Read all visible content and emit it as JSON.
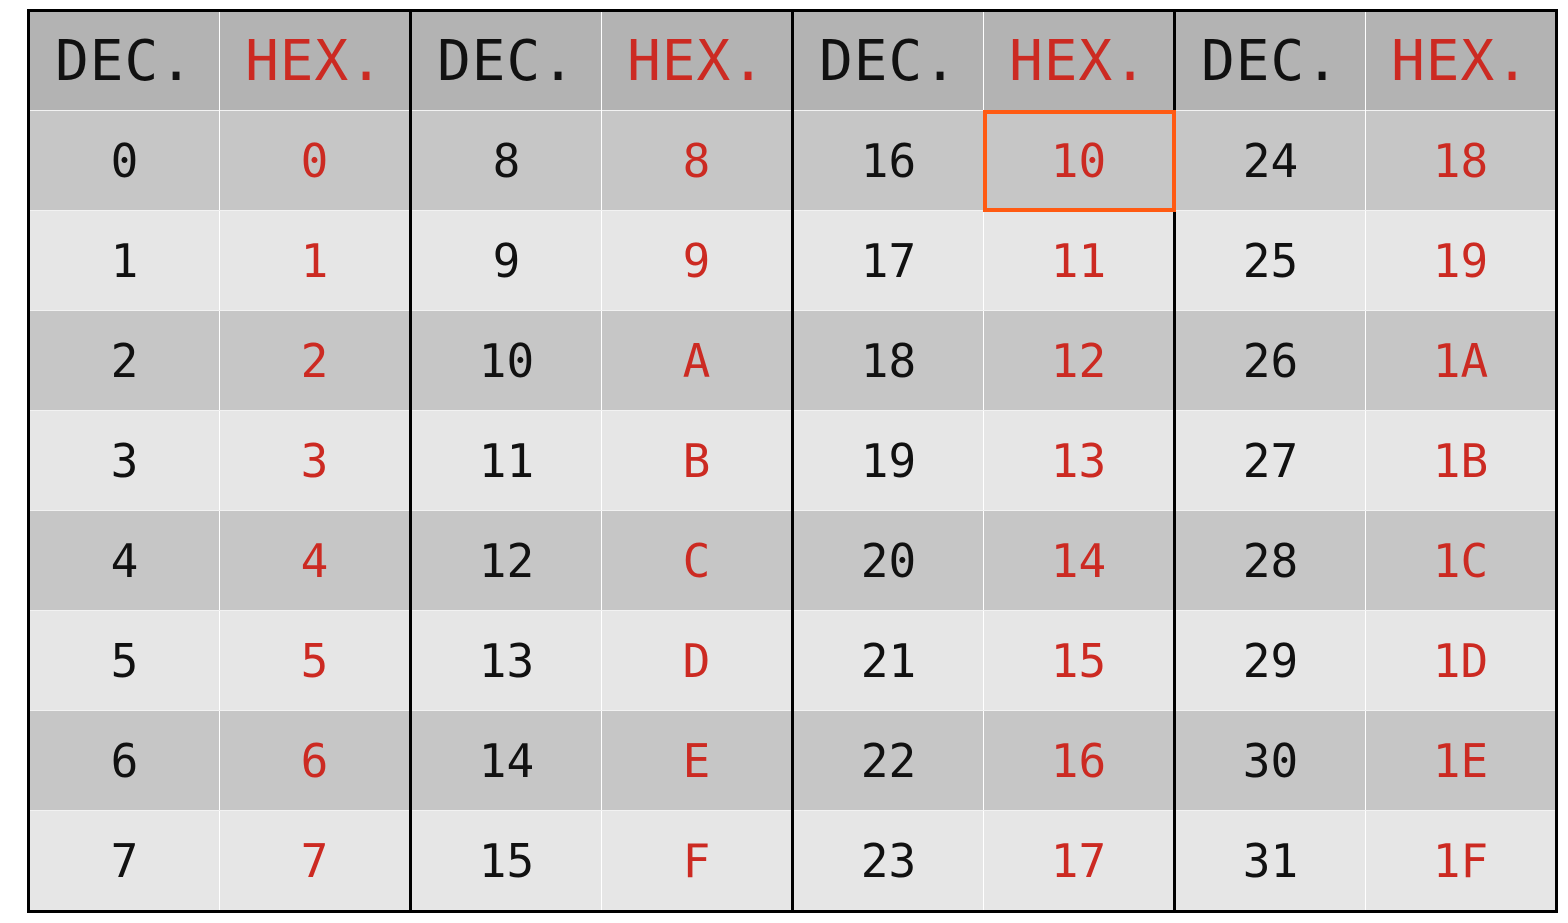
{
  "table": {
    "headers": [
      "DEC.",
      "HEX.",
      "DEC.",
      "HEX.",
      "DEC.",
      "HEX.",
      "DEC.",
      "HEX."
    ],
    "rows": [
      [
        "0",
        "0",
        "8",
        "8",
        "16",
        "10",
        "24",
        "18"
      ],
      [
        "1",
        "1",
        "9",
        "9",
        "17",
        "11",
        "25",
        "19"
      ],
      [
        "2",
        "2",
        "10",
        "A",
        "18",
        "12",
        "26",
        "1A"
      ],
      [
        "3",
        "3",
        "11",
        "B",
        "19",
        "13",
        "27",
        "1B"
      ],
      [
        "4",
        "4",
        "12",
        "C",
        "20",
        "14",
        "28",
        "1C"
      ],
      [
        "5",
        "5",
        "13",
        "D",
        "21",
        "15",
        "29",
        "1D"
      ],
      [
        "6",
        "6",
        "14",
        "E",
        "22",
        "16",
        "30",
        "1E"
      ],
      [
        "7",
        "7",
        "15",
        "F",
        "23",
        "17",
        "31",
        "1F"
      ]
    ],
    "highlighted_cell": {
      "row": 0,
      "col": 5
    }
  },
  "colors": {
    "dec_text": "#111111",
    "hex_text": "#cc2a22",
    "header_bg": "#b3b3b3",
    "row_dark_bg": "#c6c6c6",
    "row_light_bg": "#e6e6e6",
    "highlight_border": "#ff5a12"
  }
}
